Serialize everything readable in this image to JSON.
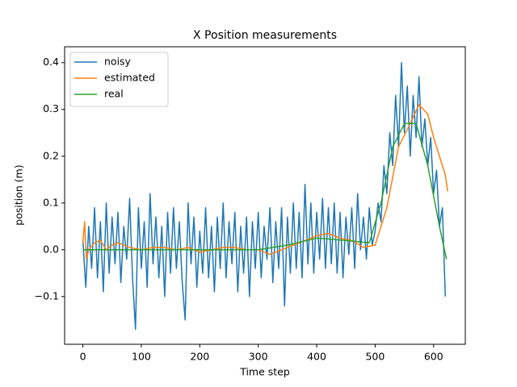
{
  "chart_data": {
    "type": "line",
    "title": "X Position measurements",
    "x_label": "Time step",
    "y_label": "position (m)",
    "xlim": [
      -31.2,
      654.2
    ],
    "ylim": [
      -0.202,
      0.434
    ],
    "xticks": [
      0,
      100,
      200,
      300,
      400,
      500,
      600
    ],
    "yticks": [
      {
        "value": -0.1,
        "label": "−0.1"
      },
      {
        "value": 0.0,
        "label": "0.0"
      },
      {
        "value": 0.1,
        "label": "0.1"
      },
      {
        "value": 0.2,
        "label": "0.2"
      },
      {
        "value": 0.3,
        "label": "0.3"
      },
      {
        "value": 0.4,
        "label": "0.4"
      }
    ],
    "legend": "upper left",
    "series": [
      {
        "name": "noisy",
        "color": "#1f77b4",
        "x": [
          0,
          5,
          10,
          15,
          20,
          25,
          30,
          35,
          40,
          45,
          50,
          55,
          60,
          65,
          70,
          75,
          80,
          85,
          90,
          95,
          100,
          105,
          110,
          115,
          120,
          125,
          130,
          135,
          140,
          145,
          150,
          155,
          160,
          165,
          170,
          175,
          180,
          185,
          190,
          195,
          200,
          205,
          210,
          215,
          220,
          225,
          230,
          235,
          240,
          245,
          250,
          255,
          260,
          265,
          270,
          275,
          280,
          285,
          290,
          295,
          300,
          305,
          310,
          315,
          320,
          325,
          330,
          335,
          340,
          345,
          350,
          355,
          360,
          365,
          370,
          375,
          380,
          385,
          390,
          395,
          400,
          405,
          410,
          415,
          420,
          425,
          430,
          435,
          440,
          445,
          450,
          455,
          460,
          465,
          470,
          475,
          480,
          485,
          490,
          495,
          500,
          505,
          510,
          515,
          520,
          525,
          530,
          535,
          540,
          545,
          550,
          555,
          560,
          565,
          570,
          575,
          580,
          585,
          590,
          595,
          600,
          605,
          610,
          615,
          620
        ],
        "values": [
          0.02,
          -0.08,
          0.05,
          -0.04,
          0.09,
          -0.06,
          0.06,
          -0.09,
          0.1,
          -0.05,
          0.07,
          -0.03,
          0.08,
          -0.07,
          0.05,
          -0.02,
          0.11,
          -0.06,
          -0.17,
          0.09,
          -0.04,
          0.06,
          -0.08,
          0.12,
          -0.03,
          0.07,
          -0.06,
          0.05,
          -0.1,
          0.08,
          -0.05,
          0.09,
          -0.04,
          0.06,
          -0.07,
          -0.15,
          0.1,
          -0.03,
          0.07,
          -0.08,
          0.04,
          -0.05,
          0.09,
          -0.06,
          0.05,
          -0.09,
          0.07,
          -0.04,
          0.1,
          -0.06,
          0.06,
          -0.03,
          0.08,
          -0.09,
          0.05,
          -0.05,
          0.07,
          -0.1,
          0.06,
          -0.04,
          0.08,
          -0.06,
          0.05,
          -0.02,
          0.09,
          -0.07,
          0.06,
          -0.04,
          0.09,
          -0.12,
          0.07,
          -0.05,
          0.1,
          -0.04,
          0.08,
          -0.06,
          0.14,
          -0.03,
          0.1,
          -0.05,
          0.08,
          -0.02,
          0.11,
          -0.04,
          0.09,
          -0.03,
          0.1,
          -0.05,
          0.08,
          -0.06,
          0.07,
          -0.01,
          0.09,
          -0.04,
          0.12,
          0.0,
          0.07,
          -0.02,
          0.09,
          0.01,
          0.04,
          0.1,
          0.06,
          0.18,
          0.12,
          0.25,
          0.18,
          0.33,
          0.22,
          0.4,
          0.25,
          0.35,
          0.2,
          0.33,
          0.24,
          0.37,
          0.22,
          0.28,
          0.18,
          0.24,
          0.12,
          0.17,
          0.05,
          0.09,
          -0.1
        ]
      },
      {
        "name": "estimated",
        "color": "#ff7f0e",
        "x": [
          0,
          3,
          6,
          10,
          20,
          30,
          40,
          50,
          60,
          80,
          100,
          120,
          140,
          160,
          180,
          200,
          220,
          240,
          260,
          280,
          300,
          320,
          340,
          360,
          380,
          400,
          420,
          440,
          460,
          480,
          500,
          520,
          540,
          560,
          575,
          590,
          600,
          610,
          620,
          624
        ],
        "values": [
          0.015,
          0.06,
          -0.02,
          0.0,
          0.015,
          0.02,
          0.0,
          0.01,
          0.015,
          0.005,
          0.0,
          0.005,
          0.005,
          0.0,
          0.005,
          -0.005,
          0.0,
          0.005,
          0.005,
          0.0,
          0.0,
          -0.01,
          0.0,
          0.01,
          0.02,
          0.03,
          0.035,
          0.025,
          0.02,
          0.005,
          0.01,
          0.09,
          0.22,
          0.27,
          0.31,
          0.29,
          0.24,
          0.2,
          0.16,
          0.125
        ]
      },
      {
        "name": "real",
        "color": "#2ca02c",
        "x": [
          0,
          100,
          200,
          300,
          350,
          400,
          450,
          490,
          510,
          530,
          550,
          570,
          590,
          610,
          622
        ],
        "values": [
          0,
          0,
          0,
          0,
          0.01,
          0.025,
          0.02,
          0.015,
          0.1,
          0.22,
          0.27,
          0.27,
          0.18,
          0.05,
          -0.02
        ]
      }
    ]
  }
}
